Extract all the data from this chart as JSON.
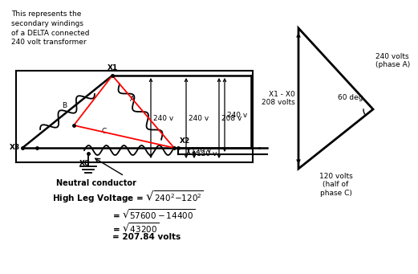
{
  "title_text": "This represents the\nsecondary windings\nof a DELTA connected\n240 volt transformer",
  "neutral_label": "Neutral conductor",
  "bg_color": "#ffffff",
  "eq1": "High Leg Voltage = $\\sqrt{240^2{-}120^2}$",
  "eq2": "= $\\sqrt{57600 - 14400}$",
  "eq3": "= $\\sqrt{43200}$",
  "eq4": "= 207.84 volts",
  "tri_left": "X1 - X0\n208 volts",
  "tri_hyp": "240 volts\n(phase A)",
  "tri_bot": "120 volts\n(half of\nphase C)",
  "tri_ang": "60 deg"
}
